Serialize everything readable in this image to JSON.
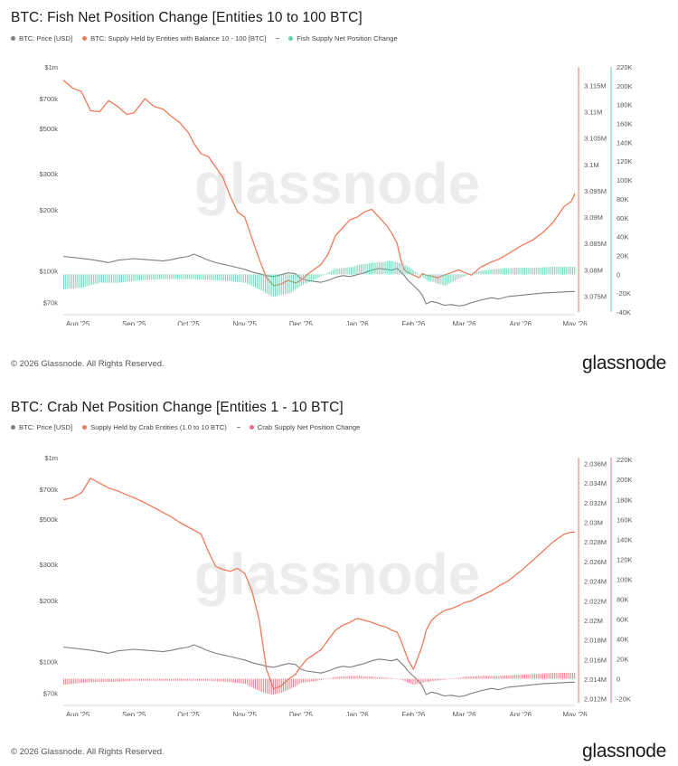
{
  "charts": [
    {
      "title": "BTC: Fish Net Position Change [Entities 10 to 100 BTC]",
      "legend": [
        {
          "label": "BTC: Price [USD]",
          "color": "#7f7f7f"
        },
        {
          "label": "BTC: Supply Held by Entities with Balance 10 - 100 [BTC]",
          "color": "#f07a58"
        },
        {
          "label": "Fish Supply Net Position Change",
          "color": "#5fd1b0"
        }
      ],
      "watermark": "glassnode",
      "footer": "© 2026 Glassnode. All Rights Reserved.",
      "brand": "glassnode"
    },
    {
      "title": "BTC: Crab Net Position Change [Entities 1 - 10 BTC]",
      "legend": [
        {
          "label": "BTC: Price [USD]",
          "color": "#7f7f7f"
        },
        {
          "label": "Supply Held by Crab Entities (1.0 to 10 BTC)",
          "color": "#f07a58"
        },
        {
          "label": "Crab Supply Net Position Change",
          "color": "#ef6d7a"
        }
      ],
      "watermark": "glassnode",
      "footer": "© 2026 Glassnode. All Rights Reserved.",
      "brand": "glassnode"
    }
  ],
  "chart_data": [
    {
      "type": "line",
      "x_tick_labels": [
        "Aug '25",
        "Sep '25",
        "Oct '25",
        "Nov '25",
        "Dec '25",
        "Jan '26",
        "Feb '26",
        "Mar '26",
        "Apr '26",
        "May '26"
      ],
      "left_axis": {
        "scale": "log",
        "ticks": [
          "$1m",
          "$700k",
          "$500k",
          "$300k",
          "$200k",
          "$100k",
          "$70k"
        ],
        "tick_values": [
          1000000,
          700000,
          500000,
          300000,
          200000,
          100000,
          70000
        ],
        "range": [
          63000,
          1000000
        ]
      },
      "right_axis_1": {
        "ticks": [
          "3.115M",
          "3.11M",
          "3.105M",
          "3.1M",
          "3.095M",
          "3.09M",
          "3.085M",
          "3.08M",
          "3.075M"
        ],
        "tick_values": [
          3115000,
          3110000,
          3105000,
          3100000,
          3095000,
          3090000,
          3085000,
          3080000,
          3075000
        ],
        "range": [
          3072000,
          3118500
        ],
        "color": "#f07a58"
      },
      "right_axis_2": {
        "ticks": [
          "220K",
          "200K",
          "180K",
          "160K",
          "140K",
          "120K",
          "100K",
          "80K",
          "60K",
          "40K",
          "20K",
          "0",
          "-20K",
          "-40K"
        ],
        "tick_values": [
          220000,
          200000,
          180000,
          160000,
          140000,
          120000,
          100000,
          80000,
          60000,
          40000,
          20000,
          0,
          -20000,
          -40000
        ],
        "range": [
          -40000,
          220000
        ],
        "color": "#5fd1b0"
      },
      "x_range": [
        0,
        282
      ],
      "x_tick_positions": [
        8,
        39,
        69,
        100,
        131,
        162,
        193,
        221,
        252,
        282
      ],
      "series": [
        {
          "name": "BTC: Price [USD]",
          "axis": "left",
          "color": "#7f7f7f",
          "x": [
            0,
            8,
            15,
            20,
            25,
            30,
            39,
            45,
            50,
            55,
            60,
            64,
            69,
            72,
            76,
            80,
            84,
            88,
            92,
            96,
            100,
            104,
            108,
            112,
            116,
            120,
            124,
            128,
            131,
            134,
            138,
            142,
            146,
            150,
            154,
            158,
            162,
            166,
            170,
            174,
            178,
            181,
            184,
            186,
            188,
            190,
            193,
            196,
            198,
            200,
            203,
            206,
            210,
            214,
            218,
            221,
            225,
            230,
            236,
            240,
            245,
            252,
            258,
            264,
            270,
            276,
            282
          ],
          "y": [
            118000,
            116000,
            114000,
            112000,
            110000,
            113000,
            115000,
            114000,
            113000,
            112000,
            114000,
            116000,
            118000,
            121000,
            117000,
            113000,
            110000,
            108000,
            106000,
            104000,
            102000,
            99000,
            97000,
            95000,
            94000,
            96000,
            98000,
            97000,
            92000,
            90000,
            89000,
            88000,
            90000,
            93000,
            95000,
            94000,
            96000,
            98000,
            101000,
            103000,
            102000,
            101000,
            103000,
            99000,
            95000,
            90000,
            85000,
            80000,
            76000,
            69000,
            71000,
            70000,
            68000,
            68500,
            67500,
            68000,
            70000,
            72000,
            74000,
            73000,
            75000,
            76000,
            77000,
            78000,
            78500,
            79000,
            79500
          ]
        },
        {
          "name": "BTC: Supply Held by Entities with Balance 10 - 100 [BTC]",
          "axis": "right_1",
          "color": "#f07a58",
          "x": [
            0,
            5,
            10,
            15,
            20,
            25,
            30,
            35,
            39,
            45,
            50,
            55,
            60,
            64,
            69,
            72,
            76,
            80,
            84,
            88,
            92,
            96,
            100,
            104,
            108,
            112,
            116,
            120,
            124,
            128,
            131,
            134,
            138,
            142,
            146,
            150,
            154,
            158,
            162,
            166,
            170,
            174,
            178,
            181,
            184,
            186,
            188,
            190,
            193,
            196,
            198,
            200,
            203,
            206,
            210,
            214,
            218,
            221,
            225,
            230,
            236,
            240,
            245,
            252,
            258,
            264,
            270,
            276,
            280,
            282
          ],
          "y": [
            3116000,
            3114500,
            3113800,
            3110200,
            3110000,
            3112100,
            3111000,
            3109500,
            3109800,
            3112500,
            3111000,
            3110500,
            3109000,
            3108000,
            3106000,
            3104000,
            3102000,
            3101500,
            3099500,
            3097500,
            3094000,
            3091000,
            3090000,
            3086000,
            3082000,
            3078500,
            3077000,
            3077300,
            3078000,
            3077500,
            3078000,
            3079000,
            3080000,
            3081000,
            3083000,
            3086500,
            3088000,
            3089500,
            3090000,
            3091000,
            3091500,
            3090000,
            3088500,
            3087000,
            3085000,
            3082000,
            3080000,
            3079500,
            3079000,
            3078500,
            3079300,
            3079000,
            3078800,
            3078500,
            3079000,
            3079500,
            3080000,
            3079500,
            3079000,
            3080500,
            3081500,
            3082000,
            3083000,
            3084500,
            3085500,
            3087000,
            3089000,
            3092000,
            3093000,
            3094500
          ]
        },
        {
          "name": "Fish Supply Net Position Change",
          "axis": "right_2",
          "color": "#5fd1b0",
          "type": "bar",
          "x": [
            0,
            10,
            20,
            30,
            39,
            45,
            55,
            69,
            80,
            90,
            100,
            110,
            115,
            120,
            125,
            131,
            140,
            150,
            160,
            162,
            170,
            180,
            186,
            190,
            193,
            200,
            210,
            221,
            230,
            240,
            250,
            260,
            270,
            282
          ],
          "y": [
            -16000,
            -14000,
            -9000,
            -9000,
            -7000,
            -6000,
            -5000,
            -5000,
            -6000,
            -7000,
            -9000,
            -18000,
            -24000,
            -22000,
            -20000,
            -12000,
            -4000,
            6000,
            8000,
            10000,
            12000,
            14000,
            12000,
            8000,
            4000,
            -6000,
            -12000,
            -2000,
            4000,
            6000,
            7000,
            7000,
            8000,
            8000
          ]
        }
      ]
    },
    {
      "type": "line",
      "x_tick_labels": [
        "Aug '25",
        "Sep '25",
        "Oct '25",
        "Nov '25",
        "Dec '25",
        "Jan '26",
        "Feb '26",
        "Mar '26",
        "Apr '26",
        "May '26"
      ],
      "left_axis": {
        "scale": "log",
        "ticks": [
          "$1m",
          "$700k",
          "$500k",
          "$300k",
          "$200k",
          "$100k",
          "$70k"
        ],
        "tick_values": [
          1000000,
          700000,
          500000,
          300000,
          200000,
          100000,
          70000
        ],
        "range": [
          63000,
          1000000
        ]
      },
      "right_axis_1": {
        "ticks": [
          "2.036M",
          "2.034M",
          "2.032M",
          "2.03M",
          "2.028M",
          "2.026M",
          "2.024M",
          "2.022M",
          "2.02M",
          "2.018M",
          "2.016M",
          "2.014M",
          "2.012M"
        ],
        "tick_values": [
          2036000,
          2034000,
          2032000,
          2030000,
          2028000,
          2026000,
          2024000,
          2022000,
          2020000,
          2018000,
          2016000,
          2014000,
          2012000
        ],
        "range": [
          2011600,
          2036600
        ],
        "color": "#f07a58"
      },
      "right_axis_2": {
        "ticks": [
          "220K",
          "200K",
          "180K",
          "160K",
          "140K",
          "120K",
          "100K",
          "80K",
          "60K",
          "40K",
          "20K",
          "0",
          "-20K"
        ],
        "tick_values": [
          220000,
          200000,
          180000,
          160000,
          140000,
          120000,
          100000,
          80000,
          60000,
          40000,
          20000,
          0,
          -20000
        ],
        "range": [
          -24000,
          222000
        ],
        "color": "#ef6d7a"
      },
      "x_range": [
        0,
        282
      ],
      "x_tick_positions": [
        8,
        39,
        69,
        100,
        131,
        162,
        193,
        221,
        252,
        282
      ],
      "series": [
        {
          "name": "BTC: Price [USD]",
          "axis": "left",
          "color": "#7f7f7f",
          "x": [
            0,
            8,
            15,
            20,
            25,
            30,
            39,
            45,
            50,
            55,
            60,
            64,
            69,
            72,
            76,
            80,
            84,
            88,
            92,
            96,
            100,
            104,
            108,
            112,
            116,
            120,
            124,
            128,
            131,
            134,
            138,
            142,
            146,
            150,
            154,
            158,
            162,
            166,
            170,
            174,
            178,
            181,
            184,
            186,
            188,
            190,
            193,
            196,
            198,
            200,
            203,
            206,
            210,
            214,
            218,
            221,
            225,
            230,
            236,
            240,
            245,
            252,
            258,
            264,
            270,
            276,
            282
          ],
          "y": [
            118000,
            116000,
            114000,
            112000,
            110000,
            113000,
            115000,
            114000,
            113000,
            112000,
            114000,
            116000,
            118000,
            121000,
            117000,
            113000,
            110000,
            108000,
            106000,
            104000,
            102000,
            99000,
            97000,
            95000,
            94000,
            96000,
            98000,
            97000,
            92000,
            90000,
            89000,
            88000,
            90000,
            93000,
            95000,
            94000,
            96000,
            98000,
            101000,
            103000,
            102000,
            101000,
            103000,
            99000,
            95000,
            90000,
            85000,
            80000,
            76000,
            69000,
            71000,
            70000,
            68000,
            68500,
            67500,
            68000,
            70000,
            72000,
            74000,
            73000,
            75000,
            76000,
            77000,
            78000,
            78500,
            79000,
            79500
          ]
        },
        {
          "name": "Supply Held by Crab Entities (1.0 to 10 BTC)",
          "axis": "right_1",
          "color": "#f07a58",
          "x": [
            0,
            5,
            10,
            15,
            20,
            25,
            30,
            35,
            39,
            45,
            50,
            55,
            60,
            64,
            69,
            72,
            76,
            80,
            84,
            88,
            92,
            96,
            100,
            104,
            108,
            112,
            116,
            120,
            124,
            128,
            131,
            134,
            138,
            142,
            146,
            150,
            154,
            158,
            162,
            166,
            170,
            174,
            178,
            181,
            184,
            186,
            188,
            190,
            193,
            196,
            198,
            200,
            203,
            206,
            210,
            214,
            218,
            221,
            225,
            230,
            236,
            240,
            245,
            252,
            258,
            264,
            270,
            276,
            280,
            282
          ],
          "y": [
            2032300,
            2032500,
            2033000,
            2034500,
            2034000,
            2033500,
            2033200,
            2032800,
            2032500,
            2032000,
            2031500,
            2031000,
            2030500,
            2030000,
            2029500,
            2029200,
            2028800,
            2027000,
            2025500,
            2025200,
            2025000,
            2025300,
            2024800,
            2023000,
            2020000,
            2015000,
            2013000,
            2013300,
            2014000,
            2014500,
            2015300,
            2016000,
            2016500,
            2017000,
            2018000,
            2019000,
            2019500,
            2019800,
            2020200,
            2020000,
            2019800,
            2019500,
            2019300,
            2019000,
            2018800,
            2018000,
            2017000,
            2016000,
            2015000,
            2016500,
            2017500,
            2019000,
            2020000,
            2020500,
            2021000,
            2021200,
            2021500,
            2021800,
            2022000,
            2022500,
            2023000,
            2023500,
            2024000,
            2025000,
            2026000,
            2027000,
            2028000,
            2028800,
            2029000,
            2029000
          ]
        },
        {
          "name": "Crab Supply Net Position Change",
          "axis": "right_2",
          "color": "#ef6d7a",
          "type": "bar",
          "x": [
            0,
            10,
            20,
            30,
            39,
            50,
            60,
            69,
            80,
            90,
            100,
            105,
            110,
            115,
            120,
            125,
            131,
            140,
            150,
            162,
            170,
            180,
            186,
            190,
            193,
            200,
            210,
            221,
            230,
            240,
            250,
            260,
            270,
            282
          ],
          "y": [
            -6000,
            -4000,
            -3000,
            -3000,
            -2000,
            -2000,
            -2000,
            -2000,
            -2000,
            -3000,
            -5000,
            -10000,
            -14000,
            -16000,
            -14000,
            -10000,
            -4000,
            -2000,
            2000,
            3000,
            2000,
            1000,
            -1000,
            -4000,
            -6000,
            -3000,
            -1000,
            2000,
            3000,
            3000,
            4000,
            5000,
            6000,
            6000
          ]
        }
      ]
    }
  ]
}
